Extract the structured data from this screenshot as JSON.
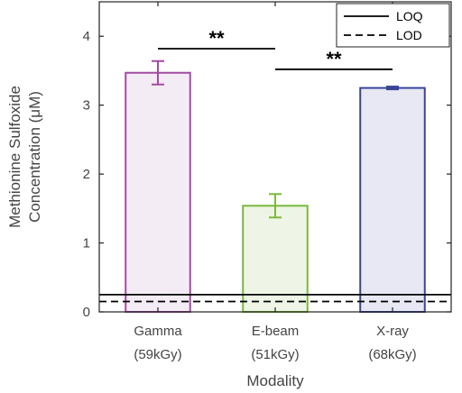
{
  "chart_data": {
    "type": "bar",
    "categories": [
      {
        "line1": "Gamma",
        "line2": "(59kGy)"
      },
      {
        "line1": "E-beam",
        "line2": "(51kGy)"
      },
      {
        "line1": "X-ray",
        "line2": "(68kGy)"
      }
    ],
    "values": [
      3.47,
      1.54,
      3.25
    ],
    "errors": [
      0.17,
      0.17,
      0.02
    ],
    "bar_colors": [
      {
        "stroke": "#a34aa3",
        "fill": "#f4ecf4"
      },
      {
        "stroke": "#7ab83c",
        "fill": "#eef5e6"
      },
      {
        "stroke": "#3a4598",
        "fill": "#e7e8f4"
      }
    ],
    "reference_lines": [
      {
        "name": "LOQ",
        "value": 0.25,
        "style": "solid"
      },
      {
        "name": "LOD",
        "value": 0.15,
        "style": "dashed"
      }
    ],
    "significance": [
      {
        "from": 0,
        "to": 1,
        "y": 3.82,
        "label": "**"
      },
      {
        "from": 1,
        "to": 2,
        "y": 3.52,
        "label": "**"
      }
    ],
    "xlabel": "Modality",
    "ylabel_line1": "Methionine Sulfoxide",
    "ylabel_line2": "Concentration (μM)",
    "ylim": [
      0,
      4.5
    ],
    "yticks": [
      0,
      1,
      2,
      3,
      4
    ],
    "ytick_labels": [
      "0",
      "1",
      "2",
      "3",
      "4"
    ],
    "legend_position": "top-right",
    "grid": false
  }
}
